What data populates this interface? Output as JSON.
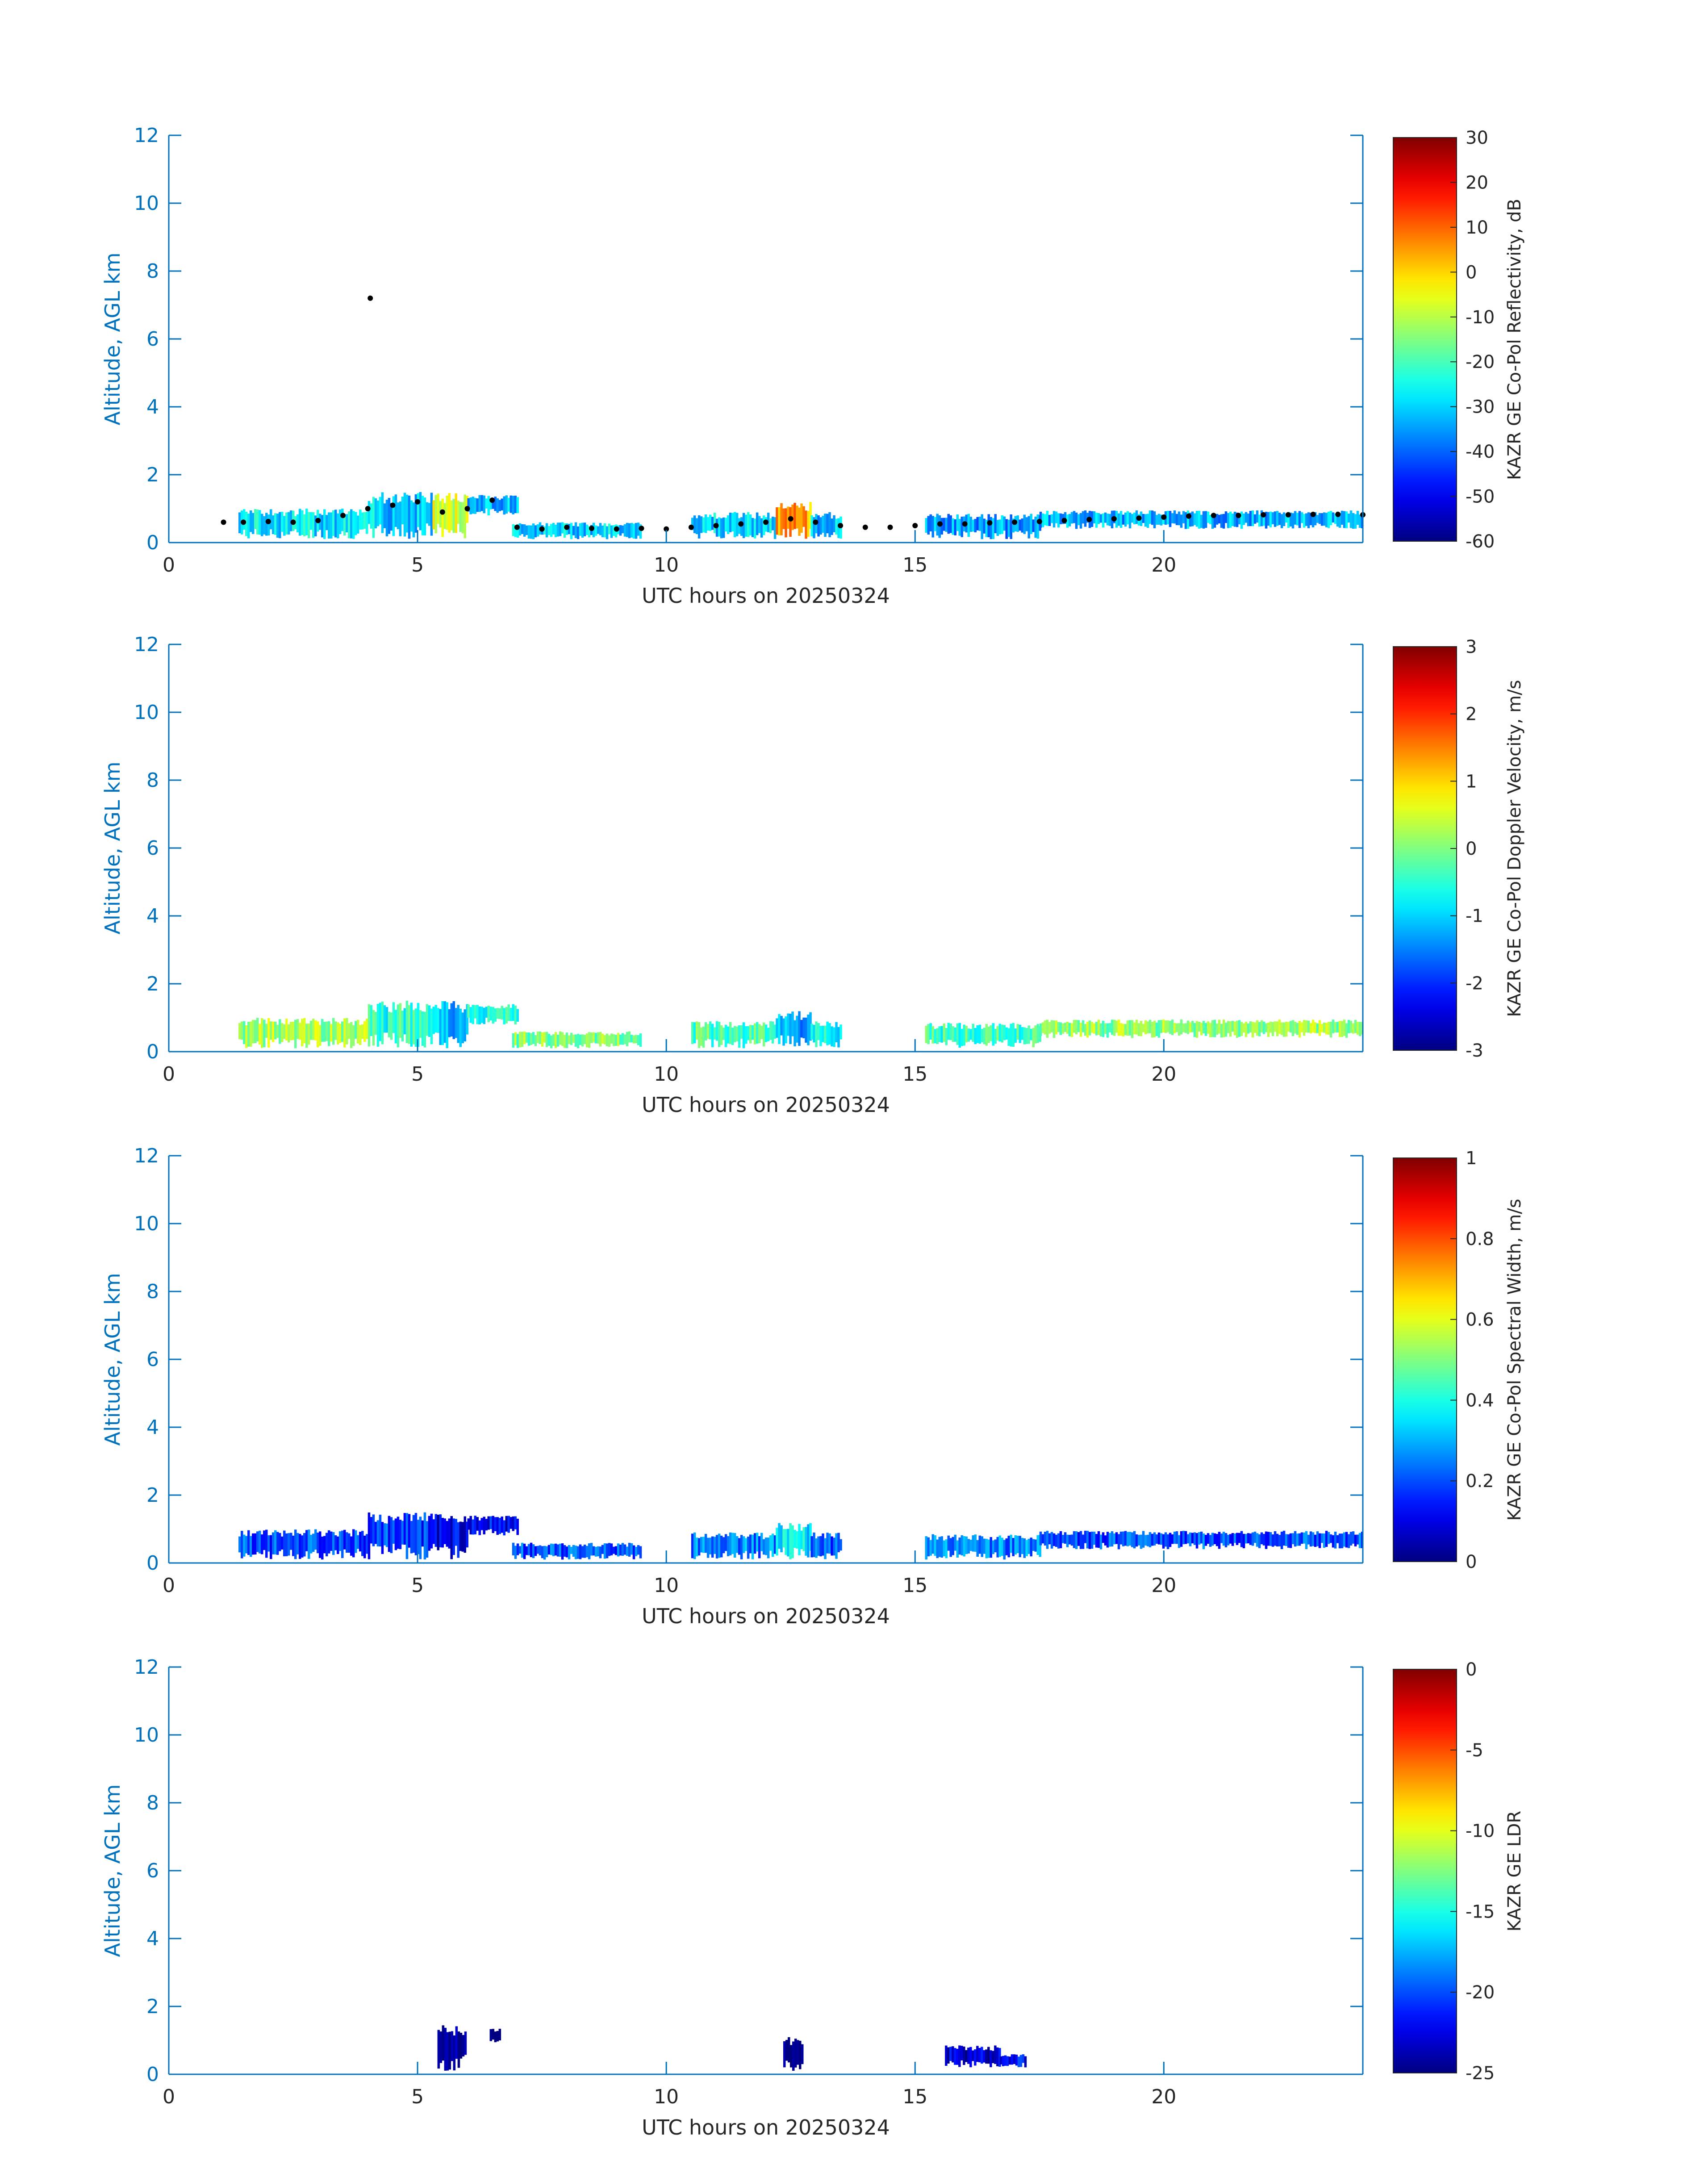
{
  "figure": {
    "xlabel": "UTC hours on 20250324",
    "ylabel": "Altitude, AGL km",
    "axis_color": "#0072BD",
    "colormap": "jet"
  },
  "chart_data": [
    {
      "type": "heatmap",
      "title": "",
      "xlabel": "UTC hours on 20250324",
      "ylabel": "Altitude, AGL km",
      "xlim": [
        0,
        24
      ],
      "ylim": [
        0,
        12
      ],
      "xticks": [
        "0",
        "5",
        "10",
        "15",
        "20"
      ],
      "yticks": [
        "0",
        "2",
        "4",
        "6",
        "8",
        "10",
        "12"
      ],
      "colorbar": {
        "label": "KAZR GE Co-Pol Reflectivity, dB",
        "range": [
          -60,
          30
        ],
        "ticks": [
          "30",
          "20",
          "10",
          "0",
          "-10",
          "-20",
          "-30",
          "-40",
          "-50",
          "-60"
        ]
      },
      "cloud_regions": [
        {
          "t0": 1.4,
          "t1": 4.0,
          "base": 0.1,
          "top": 1.0,
          "value": -28
        },
        {
          "t0": 4.0,
          "t1": 5.3,
          "base": 0.1,
          "top": 1.5,
          "value": -30
        },
        {
          "t0": 5.3,
          "t1": 6.0,
          "base": 0.1,
          "top": 1.5,
          "value": -8
        },
        {
          "t0": 6.0,
          "t1": 7.0,
          "base": 0.8,
          "top": 1.4,
          "value": -32
        },
        {
          "t0": 6.9,
          "t1": 9.5,
          "base": 0.1,
          "top": 0.6,
          "value": -30
        },
        {
          "t0": 10.5,
          "t1": 12.2,
          "base": 0.1,
          "top": 0.9,
          "value": -30
        },
        {
          "t0": 12.2,
          "t1": 12.9,
          "base": 0.1,
          "top": 1.2,
          "value": 5
        },
        {
          "t0": 12.9,
          "t1": 13.5,
          "base": 0.1,
          "top": 0.9,
          "value": -32
        },
        {
          "t0": 15.2,
          "t1": 17.5,
          "base": 0.1,
          "top": 0.85,
          "value": -35
        },
        {
          "t0": 17.5,
          "t1": 24.0,
          "base": 0.4,
          "top": 0.95,
          "value": -33
        }
      ],
      "cloud_base_points": [
        {
          "t": 1.1,
          "alt": 0.6
        },
        {
          "t": 1.5,
          "alt": 0.6
        },
        {
          "t": 2.0,
          "alt": 0.62
        },
        {
          "t": 2.5,
          "alt": 0.6
        },
        {
          "t": 3.0,
          "alt": 0.65
        },
        {
          "t": 3.5,
          "alt": 0.8
        },
        {
          "t": 4.0,
          "alt": 1.0
        },
        {
          "t": 4.05,
          "alt": 7.2
        },
        {
          "t": 4.5,
          "alt": 1.1
        },
        {
          "t": 5.0,
          "alt": 1.2
        },
        {
          "t": 5.5,
          "alt": 0.9
        },
        {
          "t": 6.0,
          "alt": 1.0
        },
        {
          "t": 6.5,
          "alt": 1.25
        },
        {
          "t": 7.0,
          "alt": 0.45
        },
        {
          "t": 7.5,
          "alt": 0.4
        },
        {
          "t": 8.0,
          "alt": 0.45
        },
        {
          "t": 8.5,
          "alt": 0.42
        },
        {
          "t": 9.0,
          "alt": 0.4
        },
        {
          "t": 9.5,
          "alt": 0.42
        },
        {
          "t": 10.0,
          "alt": 0.4
        },
        {
          "t": 10.5,
          "alt": 0.45
        },
        {
          "t": 11.0,
          "alt": 0.5
        },
        {
          "t": 11.5,
          "alt": 0.55
        },
        {
          "t": 12.0,
          "alt": 0.6
        },
        {
          "t": 12.5,
          "alt": 0.7
        },
        {
          "t": 13.0,
          "alt": 0.6
        },
        {
          "t": 13.5,
          "alt": 0.5
        },
        {
          "t": 14.0,
          "alt": 0.45
        },
        {
          "t": 14.5,
          "alt": 0.45
        },
        {
          "t": 15.0,
          "alt": 0.5
        },
        {
          "t": 15.5,
          "alt": 0.55
        },
        {
          "t": 16.0,
          "alt": 0.55
        },
        {
          "t": 16.5,
          "alt": 0.58
        },
        {
          "t": 17.0,
          "alt": 0.6
        },
        {
          "t": 17.5,
          "alt": 0.62
        },
        {
          "t": 18.0,
          "alt": 0.65
        },
        {
          "t": 18.5,
          "alt": 0.68
        },
        {
          "t": 19.0,
          "alt": 0.7
        },
        {
          "t": 19.5,
          "alt": 0.72
        },
        {
          "t": 20.0,
          "alt": 0.75
        },
        {
          "t": 20.5,
          "alt": 0.78
        },
        {
          "t": 21.0,
          "alt": 0.8
        },
        {
          "t": 21.5,
          "alt": 0.8
        },
        {
          "t": 22.0,
          "alt": 0.82
        },
        {
          "t": 22.5,
          "alt": 0.82
        },
        {
          "t": 23.0,
          "alt": 0.83
        },
        {
          "t": 23.5,
          "alt": 0.83
        },
        {
          "t": 24.0,
          "alt": 0.82
        }
      ]
    },
    {
      "type": "heatmap",
      "title": "",
      "xlabel": "UTC hours on 20250324",
      "ylabel": "Altitude, AGL km",
      "xlim": [
        0,
        24
      ],
      "ylim": [
        0,
        12
      ],
      "xticks": [
        "0",
        "5",
        "10",
        "15",
        "20"
      ],
      "yticks": [
        "0",
        "2",
        "4",
        "6",
        "8",
        "10",
        "12"
      ],
      "colorbar": {
        "label": "KAZR GE Co-Pol Doppler Velocity, m/s",
        "range": [
          -3,
          3
        ],
        "ticks": [
          "3",
          "2",
          "1",
          "0",
          "-1",
          "-2",
          "-3"
        ]
      },
      "cloud_regions": [
        {
          "t0": 1.4,
          "t1": 4.0,
          "base": 0.1,
          "top": 1.0,
          "value": 0.2
        },
        {
          "t0": 4.0,
          "t1": 5.3,
          "base": 0.1,
          "top": 1.5,
          "value": -0.5
        },
        {
          "t0": 5.3,
          "t1": 6.0,
          "base": 0.1,
          "top": 1.5,
          "value": -1.2
        },
        {
          "t0": 6.0,
          "t1": 7.0,
          "base": 0.8,
          "top": 1.4,
          "value": -0.6
        },
        {
          "t0": 6.9,
          "t1": 9.5,
          "base": 0.1,
          "top": 0.6,
          "value": 0.0
        },
        {
          "t0": 10.5,
          "t1": 12.2,
          "base": 0.1,
          "top": 0.9,
          "value": -0.3
        },
        {
          "t0": 12.2,
          "t1": 12.9,
          "base": 0.1,
          "top": 1.2,
          "value": -1.3
        },
        {
          "t0": 12.9,
          "t1": 13.5,
          "base": 0.1,
          "top": 0.9,
          "value": -0.8
        },
        {
          "t0": 15.2,
          "t1": 17.5,
          "base": 0.1,
          "top": 0.85,
          "value": -0.4
        },
        {
          "t0": 17.5,
          "t1": 24.0,
          "base": 0.4,
          "top": 0.95,
          "value": 0.1
        }
      ]
    },
    {
      "type": "heatmap",
      "title": "",
      "xlabel": "UTC hours on 20250324",
      "ylabel": "Altitude, AGL km",
      "xlim": [
        0,
        24
      ],
      "ylim": [
        0,
        12
      ],
      "xticks": [
        "0",
        "5",
        "10",
        "15",
        "20"
      ],
      "yticks": [
        "0",
        "2",
        "4",
        "6",
        "8",
        "10",
        "12"
      ],
      "colorbar": {
        "label": "KAZR GE Co-Pol Spectral Width, m/s",
        "range": [
          0,
          1
        ],
        "ticks": [
          "1",
          "0.8",
          "0.6",
          "0.4",
          "0.2",
          "0"
        ]
      },
      "cloud_regions": [
        {
          "t0": 1.4,
          "t1": 4.0,
          "base": 0.1,
          "top": 1.0,
          "value": 0.2
        },
        {
          "t0": 4.0,
          "t1": 5.3,
          "base": 0.1,
          "top": 1.5,
          "value": 0.18
        },
        {
          "t0": 5.3,
          "t1": 6.0,
          "base": 0.1,
          "top": 1.5,
          "value": 0.1
        },
        {
          "t0": 6.0,
          "t1": 7.0,
          "base": 0.8,
          "top": 1.4,
          "value": 0.12
        },
        {
          "t0": 6.9,
          "t1": 9.5,
          "base": 0.1,
          "top": 0.6,
          "value": 0.2
        },
        {
          "t0": 10.5,
          "t1": 12.2,
          "base": 0.1,
          "top": 0.9,
          "value": 0.25
        },
        {
          "t0": 12.2,
          "t1": 12.9,
          "base": 0.1,
          "top": 1.2,
          "value": 0.35
        },
        {
          "t0": 12.9,
          "t1": 13.5,
          "base": 0.1,
          "top": 0.9,
          "value": 0.2
        },
        {
          "t0": 15.2,
          "t1": 17.5,
          "base": 0.1,
          "top": 0.85,
          "value": 0.25
        },
        {
          "t0": 17.5,
          "t1": 24.0,
          "base": 0.4,
          "top": 0.95,
          "value": 0.2
        }
      ]
    },
    {
      "type": "heatmap",
      "title": "",
      "xlabel": "UTC hours on 20250324",
      "ylabel": "Altitude, AGL km",
      "xlim": [
        0,
        24
      ],
      "ylim": [
        0,
        12
      ],
      "xticks": [
        "0",
        "5",
        "10",
        "15",
        "20"
      ],
      "yticks": [
        "0",
        "2",
        "4",
        "6",
        "8",
        "10",
        "12"
      ],
      "colorbar": {
        "label": "KAZR GE LDR",
        "range": [
          -25,
          0
        ],
        "ticks": [
          "0",
          "-5",
          "-10",
          "-15",
          "-20",
          "-25"
        ]
      },
      "cloud_regions": [
        {
          "t0": 5.4,
          "t1": 5.95,
          "base": 0.1,
          "top": 1.45,
          "value": -25
        },
        {
          "t0": 6.45,
          "t1": 6.65,
          "base": 0.9,
          "top": 1.35,
          "value": -25
        },
        {
          "t0": 12.35,
          "t1": 12.75,
          "base": 0.1,
          "top": 1.1,
          "value": -25
        },
        {
          "t0": 15.6,
          "t1": 16.7,
          "base": 0.2,
          "top": 0.85,
          "value": -23
        },
        {
          "t0": 16.7,
          "t1": 17.2,
          "base": 0.2,
          "top": 0.6,
          "value": -22
        }
      ]
    }
  ]
}
